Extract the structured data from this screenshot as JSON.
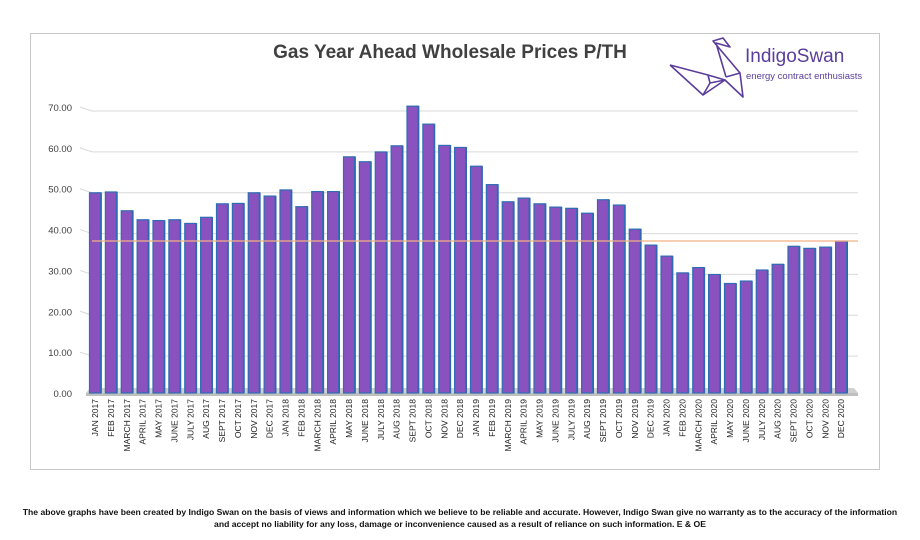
{
  "brand": {
    "name": "IndigoSwan",
    "tagline": "energy contract enthusiasts"
  },
  "footer": {
    "line1": "The above graphs have been created by Indigo Swan on the basis of views and information which we believe to be reliable and accurate. However, Indigo Swan give no warranty as to the accuracy of the information",
    "line2": "and accept no liability for any loss, damage or inconvenience caused as a result of reliance on such information. E & OE"
  },
  "colors": {
    "bar": "#8a52bf",
    "bar_side": "#4b2d74",
    "bar_outline": "#2e6db4",
    "reference_line": "#f4b183",
    "grid": "#d9d9d9"
  },
  "chart_data": {
    "type": "bar",
    "title": "Gas Year Ahead Wholesale Prices P/TH",
    "xlabel": "",
    "ylabel": "",
    "ylim": [
      0,
      70
    ],
    "yticks": [
      "0.00",
      "10.00",
      "20.00",
      "30.00",
      "40.00",
      "50.00",
      "60.00",
      "70.00"
    ],
    "grid": true,
    "reference_line": 37.2,
    "categories": [
      "JAN 2017",
      "FEB 2017",
      "MARCH 2017",
      "APRIL 2017",
      "MAY 2017",
      "JUNE 2017",
      "JULY 2017",
      "AUG 2017",
      "SEPT 2017",
      "OCT 2017",
      "NOV 2017",
      "DEC 2017",
      "JAN 2018",
      "FEB 2018",
      "MARCH 2018",
      "APRIL 2018",
      "MAY 2018",
      "JUNE 2018",
      "JULY 2018",
      "AUG 2018",
      "SEPT 2018",
      "OCT 2018",
      "NOV 2018",
      "DEC 2018",
      "JAN 2019",
      "FEB 2019",
      "MARCH 2019",
      "APRIL 2019",
      "MAY 2019",
      "JUNE 2019",
      "JULY 2019",
      "AUG 2019",
      "SEPT 2019",
      "OCT 2019",
      "NOV 2019",
      "DEC 2019",
      "JAN 2020",
      "FEB 2020",
      "MARCH 2020",
      "APRIL 2020",
      "MAY 2020",
      "JUNE 2020",
      "JULY 2020",
      "AUG 2020",
      "SEPT 2020",
      "OCT 2020",
      "NOV 2020",
      "DEC 2020"
    ],
    "values": [
      49.0,
      49.2,
      44.6,
      42.4,
      42.2,
      42.4,
      41.5,
      43.0,
      46.3,
      46.4,
      49.0,
      48.2,
      49.7,
      45.6,
      49.3,
      49.3,
      57.8,
      56.6,
      59.0,
      60.5,
      70.2,
      65.8,
      60.6,
      60.1,
      55.5,
      51.0,
      46.8,
      47.7,
      46.3,
      45.5,
      45.2,
      44.0,
      47.3,
      46.0,
      40.1,
      36.2,
      33.5,
      29.4,
      30.7,
      29.0,
      26.8,
      27.4,
      30.1,
      31.5,
      35.9,
      35.4,
      35.7,
      37.2
    ]
  }
}
